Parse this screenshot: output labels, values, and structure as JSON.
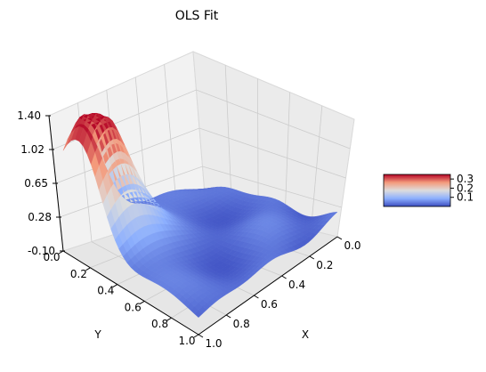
{
  "chart_data": {
    "type": "surface3d",
    "title": "OLS Fit",
    "xlabel": "X",
    "ylabel": "Y",
    "zlabel": "",
    "x_ticks": [
      "0.0",
      "0.2",
      "0.4",
      "0.6",
      "0.8",
      "1.0"
    ],
    "y_ticks": [
      "0.0",
      "0.2",
      "0.4",
      "0.6",
      "0.8",
      "1.0"
    ],
    "z_ticks": [
      "-0.10",
      "0.28",
      "0.65",
      "1.02",
      "1.40"
    ],
    "xlim": [
      0,
      1
    ],
    "ylim": [
      0,
      1
    ],
    "zlim": [
      -0.1,
      1.4
    ],
    "colormap": "coolwarm",
    "colormap_colors": [
      "#3b4cc0",
      "#aac7fd",
      "#dddddd",
      "#f7b89c",
      "#b40426"
    ],
    "colorbar_ticks": [
      "0.3",
      "0.2",
      "0.1"
    ],
    "colorbar_range": [
      0.0,
      0.35
    ],
    "peak": {
      "x": 0.12,
      "y": 0.12,
      "z": 1.4
    },
    "grid": true
  }
}
